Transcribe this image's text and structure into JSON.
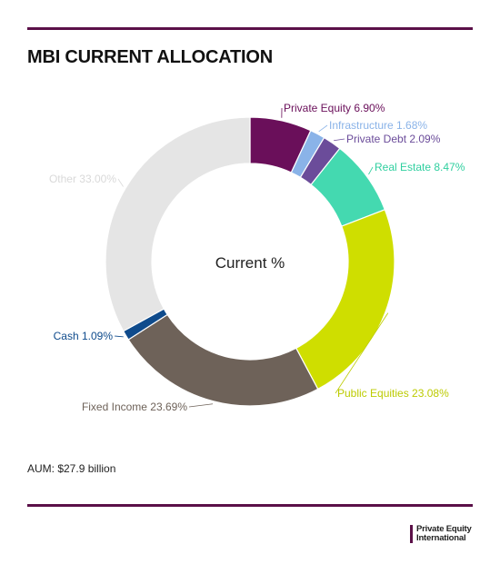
{
  "header": {
    "title": "MBI CURRENT ALLOCATION"
  },
  "footer": {
    "aum": "AUM: $27.9 billion",
    "logo_lines": [
      "Private Equity",
      "International"
    ]
  },
  "chart_data": {
    "type": "pie",
    "center_label": "Current %",
    "slices": [
      {
        "name": "Private Equity",
        "value": 6.9,
        "label": "Private Equity 6.90%",
        "color": "#6a0f5a"
      },
      {
        "name": "Infrastructure",
        "value": 1.68,
        "label": "Infrastructure 1.68%",
        "color": "#8ab3e8"
      },
      {
        "name": "Private Debt",
        "value": 2.09,
        "label": "Private Debt 2.09%",
        "color": "#6b4c9a"
      },
      {
        "name": "Real Estate",
        "value": 8.47,
        "label": "Real Estate 8.47%",
        "color": "#44d9b0"
      },
      {
        "name": "Public Equities",
        "value": 23.08,
        "label": "Public Equities 23.08%",
        "color": "#cfde00"
      },
      {
        "name": "Fixed Income",
        "value": 23.69,
        "label": "Fixed Income 23.69%",
        "color": "#6e6259"
      },
      {
        "name": "Cash",
        "value": 1.09,
        "label": "Cash 1.09%",
        "color": "#0f4b8c"
      },
      {
        "name": "Other",
        "value": 33.0,
        "label": "Other 33.00%",
        "color": "#e5e5e5"
      }
    ],
    "label_colors": {
      "Private Equity": "#6a0f5a",
      "Infrastructure": "#8ab3e8",
      "Private Debt": "#6b4c9a",
      "Real Estate": "#2fcf9f",
      "Public Equities": "#bccb00",
      "Fixed Income": "#6e6259",
      "Cash": "#0f4b8c",
      "Other": "#d9d9d9"
    }
  }
}
